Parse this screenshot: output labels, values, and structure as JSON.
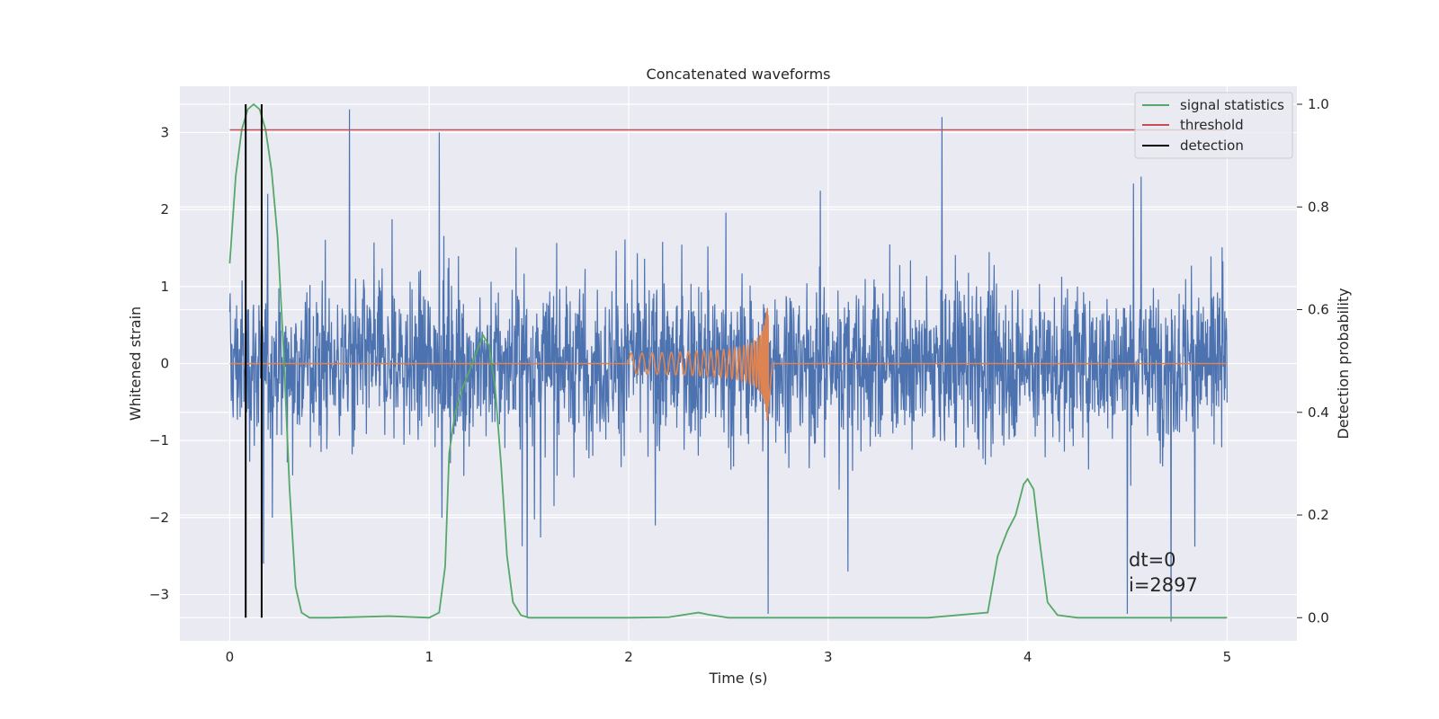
{
  "chart_data": {
    "type": "line",
    "title": "Concatenated waveforms",
    "xlabel": "Time (s)",
    "ylabel": "Whitened strain",
    "ylabel_right": "Detection probability",
    "xlim": [
      -0.25,
      5.35
    ],
    "ylim": [
      -3.6,
      3.6
    ],
    "ylim_right": [
      -0.045,
      1.035
    ],
    "x_ticks": [
      0,
      1,
      2,
      3,
      4,
      5
    ],
    "y_ticks": [
      3,
      2,
      1,
      0,
      -1,
      -2,
      -3
    ],
    "y_ticks_right": [
      1.0,
      0.8,
      0.6,
      0.4,
      0.2,
      0.0
    ],
    "x_tick_labels": [
      "0",
      "1",
      "2",
      "3",
      "4",
      "5"
    ],
    "y_tick_labels": [
      "3",
      "2",
      "1",
      "0",
      "−1",
      "−2",
      "−3"
    ],
    "y_tick_labels_right": [
      "1.0",
      "0.8",
      "0.6",
      "0.4",
      "0.2",
      "0.0"
    ],
    "grid": true,
    "legend_position": "top-right",
    "series": [
      {
        "name": "",
        "axis": "left",
        "kind": "noise",
        "color": "#4c72b0",
        "x_range": [
          0,
          5
        ],
        "envelope": [
          -2.7,
          3.3
        ],
        "spikes": [
          [
            0.6,
            3.3
          ],
          [
            1.05,
            3.0
          ],
          [
            2.7,
            -3.25
          ],
          [
            4.5,
            -3.25
          ],
          [
            4.72,
            -3.35
          ],
          [
            3.57,
            3.2
          ],
          [
            0.17,
            -2.6
          ],
          [
            1.49,
            -3.3
          ]
        ]
      },
      {
        "name": "",
        "axis": "left",
        "kind": "chirp",
        "color": "#dd8452",
        "x": [
          0,
          2.0,
          2.7,
          5.0
        ],
        "chirp_start": 2.0,
        "chirp_end": 2.7,
        "peak_amplitude": 1.0
      },
      {
        "name": "signal statistics",
        "axis": "right",
        "color": "#55a868",
        "x": [
          0.0,
          0.03,
          0.06,
          0.09,
          0.12,
          0.15,
          0.18,
          0.21,
          0.24,
          0.27,
          0.3,
          0.33,
          0.36,
          0.4,
          0.5,
          0.8,
          1.0,
          1.05,
          1.08,
          1.1,
          1.13,
          1.17,
          1.22,
          1.27,
          1.3,
          1.33,
          1.36,
          1.39,
          1.42,
          1.46,
          1.5,
          1.6,
          2.0,
          2.2,
          2.3,
          2.35,
          2.4,
          2.5,
          3.0,
          3.5,
          3.8,
          3.85,
          3.9,
          3.94,
          3.98,
          4.0,
          4.03,
          4.06,
          4.1,
          4.15,
          4.25,
          5.0
        ],
        "y": [
          0.69,
          0.86,
          0.95,
          0.99,
          1.0,
          0.99,
          0.95,
          0.87,
          0.74,
          0.52,
          0.25,
          0.06,
          0.01,
          0.0,
          0.0,
          0.003,
          0.0,
          0.01,
          0.1,
          0.32,
          0.4,
          0.45,
          0.5,
          0.55,
          0.53,
          0.45,
          0.3,
          0.12,
          0.03,
          0.005,
          0.0,
          0.0,
          0.0,
          0.001,
          0.007,
          0.01,
          0.006,
          0.0,
          0.0,
          0.0,
          0.01,
          0.12,
          0.17,
          0.2,
          0.26,
          0.27,
          0.25,
          0.15,
          0.03,
          0.005,
          0.0,
          0.0
        ]
      },
      {
        "name": "threshold",
        "axis": "right",
        "color": "#c44e52",
        "x": [
          0,
          5
        ],
        "y": [
          0.95,
          0.95
        ]
      },
      {
        "name": "detection",
        "axis": "right",
        "color": "#000000",
        "kind": "vlines",
        "x": [
          0.08,
          0.16
        ],
        "y_range": [
          0.0,
          1.0
        ]
      }
    ],
    "legend": [
      "signal statistics",
      "threshold",
      "detection"
    ],
    "annotations": [
      "dt=0",
      "i=2897"
    ]
  }
}
